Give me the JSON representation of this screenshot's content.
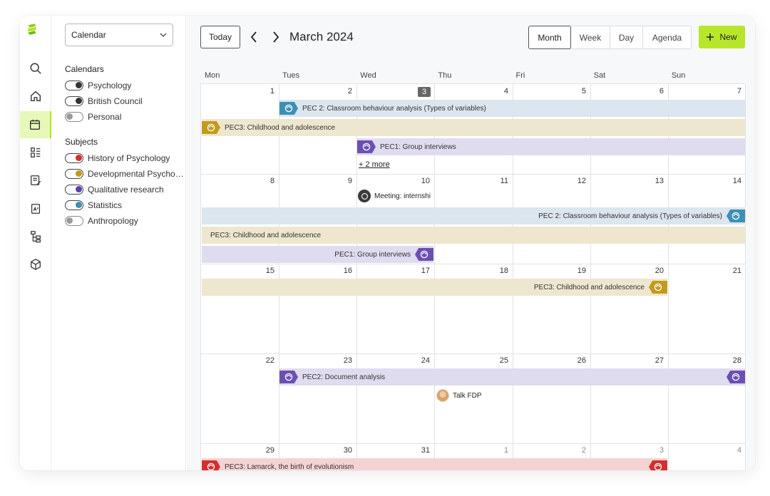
{
  "sidebar": {
    "calendar_select": "Calendar",
    "calendars_title": "Calendars",
    "calendars": [
      {
        "label": "Psychology",
        "color": "#333333"
      },
      {
        "label": "British Council",
        "color": "#333333"
      },
      {
        "label": "Personal",
        "color": "#9a9a9a"
      }
    ],
    "subjects_title": "Subjects",
    "subjects": [
      {
        "label": "History of Psychology",
        "color": "#d32f2f"
      },
      {
        "label": "Developmental Psycho…",
        "color": "#c49a1a"
      },
      {
        "label": "Qualitative research",
        "color": "#5e3fae"
      },
      {
        "label": "Statistics",
        "color": "#3d8fb5"
      },
      {
        "label": "Anthropology",
        "color": "#9a9a9a"
      }
    ]
  },
  "toolbar": {
    "today": "Today",
    "title": "March 2024",
    "views": [
      "Month",
      "Week",
      "Day",
      "Agenda"
    ],
    "active_view": "Month",
    "new_label": "New",
    "new_icon": "plus-icon"
  },
  "colors": {
    "accent": "#b8e62a",
    "statistics_bg": "#dbe6ee",
    "statistics": "#3d8fb5",
    "developmental_bg": "#efe6cf",
    "developmental": "#c49a1a",
    "qualitative_bg": "#e0dcef",
    "qualitative": "#6b4fb5",
    "history_bg": "#f5d3d3",
    "history": "#d32f2f"
  },
  "weekdays": [
    "Mon",
    "Tues",
    "Wed",
    "Thu",
    "Fri",
    "Sat",
    "Sun"
  ],
  "weeks": [
    {
      "days": [
        "1",
        "2",
        "3",
        "4",
        "5",
        "6",
        "7"
      ]
    },
    {
      "days": [
        "8",
        "9",
        "10",
        "11",
        "12",
        "13",
        "14"
      ]
    },
    {
      "days": [
        "15",
        "16",
        "17",
        "18",
        "19",
        "20",
        "21"
      ]
    },
    {
      "days": [
        "22",
        "23",
        "24",
        "25",
        "26",
        "27",
        "28"
      ]
    },
    {
      "days": [
        "29",
        "30",
        "31",
        "1",
        "2",
        "3",
        "4"
      ]
    }
  ],
  "today_index": [
    0,
    2
  ],
  "events": {
    "w1_stat": "PEC 2: Classroom behaviour analysis (Types of variables)",
    "w1_dev": "PEC3: Childhood and adolescence",
    "w1_qual": "PEC1: Group interviews",
    "w1_more": "+ 2 more",
    "w2_meet": "Meeting: internshi",
    "w2_stat": "PEC 2: Classroom behaviour analysis (Types of variables)",
    "w2_dev": "PEC3: Childhood and adolescence",
    "w2_qual": "PEC1: Group interviews",
    "w3_dev": "PEC3: Childhood and adolescence",
    "w4_qual": "PEC2: Document analysis",
    "w4_talk": "Talk FDP",
    "w5_hist": "PEC3: Lamarck, the birth of evolutionism"
  }
}
